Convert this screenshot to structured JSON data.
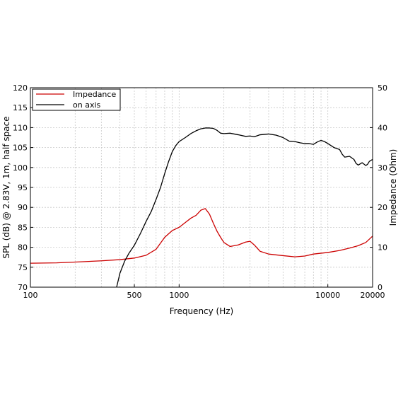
{
  "chart_data": {
    "type": "line",
    "xlabel": "Frequency (Hz)",
    "ylabel": "SPL (dB) @ 2.83V, 1m, half space",
    "y2label": "Impedance (Ohm)",
    "x_scale": "log",
    "xlim": [
      100,
      20000
    ],
    "ylim": [
      70,
      120
    ],
    "y2lim": [
      0,
      50
    ],
    "x_ticks": [
      100,
      500,
      1000,
      10000,
      20000
    ],
    "x_tick_labels": [
      "100",
      "500",
      "1000",
      "10000",
      "20000"
    ],
    "y_ticks": [
      70,
      75,
      80,
      85,
      90,
      95,
      100,
      105,
      110,
      115,
      120
    ],
    "y_tick_labels": [
      "70",
      "75",
      "80",
      "85",
      "90",
      "95",
      "100",
      "105",
      "110",
      "115",
      "120"
    ],
    "y2_ticks": [
      0,
      10,
      20,
      30,
      40,
      50
    ],
    "y2_tick_labels": [
      "0",
      "10",
      "20",
      "30",
      "40",
      "50"
    ],
    "grid": true,
    "legend_position": "top-left",
    "series": [
      {
        "name": "Impedance",
        "axis": "right",
        "color": "#cc0000",
        "points": [
          [
            100,
            6.0
          ],
          [
            150,
            6.1
          ],
          [
            200,
            6.3
          ],
          [
            300,
            6.6
          ],
          [
            400,
            6.9
          ],
          [
            500,
            7.3
          ],
          [
            600,
            8.0
          ],
          [
            700,
            9.5
          ],
          [
            800,
            12.5
          ],
          [
            900,
            14.2
          ],
          [
            1000,
            15.0
          ],
          [
            1100,
            16.2
          ],
          [
            1200,
            17.3
          ],
          [
            1300,
            18.0
          ],
          [
            1400,
            19.3
          ],
          [
            1500,
            19.7
          ],
          [
            1600,
            18.3
          ],
          [
            1700,
            16.0
          ],
          [
            1800,
            14.0
          ],
          [
            1900,
            12.5
          ],
          [
            2000,
            11.2
          ],
          [
            2200,
            10.2
          ],
          [
            2500,
            10.6
          ],
          [
            2800,
            11.3
          ],
          [
            3000,
            11.5
          ],
          [
            3200,
            10.6
          ],
          [
            3500,
            9.0
          ],
          [
            4000,
            8.3
          ],
          [
            5000,
            7.9
          ],
          [
            6000,
            7.6
          ],
          [
            7000,
            7.8
          ],
          [
            8000,
            8.3
          ],
          [
            10000,
            8.7
          ],
          [
            12000,
            9.2
          ],
          [
            14000,
            9.8
          ],
          [
            16000,
            10.4
          ],
          [
            18000,
            11.2
          ],
          [
            20000,
            12.8
          ]
        ]
      },
      {
        "name": "on axis",
        "axis": "left",
        "color": "#000000",
        "points": [
          [
            380,
            70.0
          ],
          [
            400,
            73.5
          ],
          [
            430,
            76.5
          ],
          [
            460,
            78.5
          ],
          [
            500,
            80.5
          ],
          [
            550,
            83.5
          ],
          [
            600,
            86.5
          ],
          [
            650,
            89.0
          ],
          [
            700,
            92.0
          ],
          [
            750,
            95.0
          ],
          [
            800,
            98.5
          ],
          [
            850,
            101.5
          ],
          [
            900,
            104.0
          ],
          [
            950,
            105.5
          ],
          [
            1000,
            106.5
          ],
          [
            1100,
            107.5
          ],
          [
            1200,
            108.5
          ],
          [
            1300,
            109.2
          ],
          [
            1400,
            109.7
          ],
          [
            1500,
            109.9
          ],
          [
            1600,
            109.9
          ],
          [
            1700,
            109.8
          ],
          [
            1800,
            109.3
          ],
          [
            1900,
            108.6
          ],
          [
            2000,
            108.5
          ],
          [
            2200,
            108.6
          ],
          [
            2500,
            108.2
          ],
          [
            2800,
            107.8
          ],
          [
            3000,
            107.9
          ],
          [
            3200,
            107.7
          ],
          [
            3500,
            108.2
          ],
          [
            4000,
            108.4
          ],
          [
            4500,
            108.1
          ],
          [
            5000,
            107.5
          ],
          [
            5500,
            106.6
          ],
          [
            6000,
            106.5
          ],
          [
            6500,
            106.2
          ],
          [
            7000,
            106.0
          ],
          [
            7500,
            106.0
          ],
          [
            8000,
            105.8
          ],
          [
            8500,
            106.4
          ],
          [
            9000,
            106.8
          ],
          [
            9500,
            106.5
          ],
          [
            10000,
            106.0
          ],
          [
            11000,
            105.0
          ],
          [
            12000,
            104.5
          ],
          [
            12500,
            103.3
          ],
          [
            13000,
            102.6
          ],
          [
            14000,
            102.8
          ],
          [
            15000,
            102.0
          ],
          [
            15500,
            101.0
          ],
          [
            16000,
            100.6
          ],
          [
            17000,
            101.2
          ],
          [
            18000,
            100.5
          ],
          [
            18500,
            100.8
          ],
          [
            19000,
            101.5
          ],
          [
            19500,
            101.8
          ],
          [
            20000,
            102.0
          ]
        ]
      }
    ]
  }
}
